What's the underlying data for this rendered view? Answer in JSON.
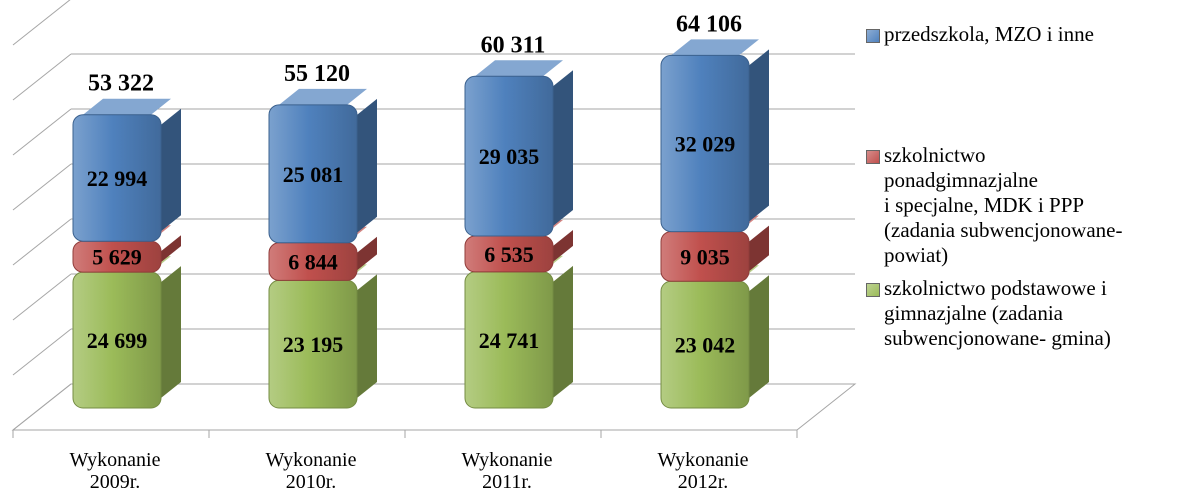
{
  "chart_data": {
    "type": "bar",
    "stacked": true,
    "categories": [
      "Wykonanie 2009r.",
      "Wykonanie 2010r.",
      "Wykonanie 2011r.",
      "Wykonanie 2012r."
    ],
    "category_lines": [
      [
        "Wykonanie",
        "2009r."
      ],
      [
        "Wykonanie",
        "2010r."
      ],
      [
        "Wykonanie",
        "2011r."
      ],
      [
        "Wykonanie",
        "2012r."
      ]
    ],
    "series": [
      {
        "name": "szkolnictwo podstawowe i gimnazjalne (zadania subwencjonowane- gmina)",
        "values": [
          24699,
          23195,
          24741,
          23042
        ],
        "labels": [
          "24 699",
          "23 195",
          "24 741",
          "23 042"
        ],
        "color": "#9bbb59"
      },
      {
        "name": "szkolnictwo ponadgimnazjalne i specjalne, MDK i PPP (zadania subwencjonowane- powiat)",
        "values": [
          5629,
          6844,
          6535,
          9035
        ],
        "labels": [
          "5 629",
          "6 844",
          "6 535",
          "9 035"
        ],
        "color": "#c0504d"
      },
      {
        "name": "przedszkola, MZO i inne",
        "values": [
          22994,
          25081,
          29035,
          32029
        ],
        "labels": [
          "22 994",
          "25 081",
          "29 035",
          "32 029"
        ],
        "color": "#4f81bd"
      }
    ],
    "totals": [
      53322,
      55120,
      60311,
      64106
    ],
    "total_labels": [
      "53 322",
      "55 120",
      "60 311",
      "64 106"
    ],
    "ylim": [
      0,
      70000
    ],
    "grid": true,
    "legend_position": "right",
    "legend": {
      "order": [
        2,
        1,
        0
      ],
      "lines": [
        [
          "szkolnictwo podstawowe i",
          "gimnazjalne (zadania",
          "subwencjonowane- gmina)"
        ],
        [
          "szkolnictwo",
          "ponadgimnazjalne",
          "i specjalne, MDK i PPP",
          "(zadania subwencjonowane-",
          "powiat)"
        ],
        [
          "przedszkola, MZO i inne"
        ]
      ]
    },
    "title": "",
    "xlabel": "",
    "ylabel": ""
  }
}
